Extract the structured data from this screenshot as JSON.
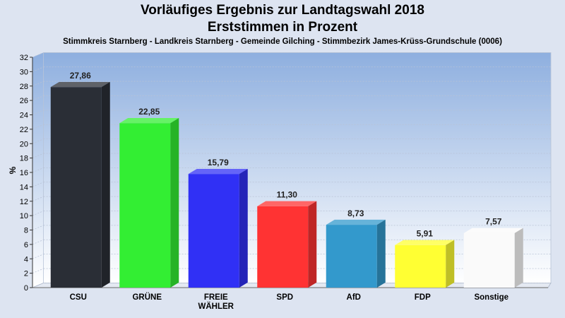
{
  "chart_data": {
    "type": "bar",
    "title": [
      "Vorläufiges Ergebnis zur Landtagswahl 2018",
      "Erststimmen in Prozent"
    ],
    "subtitle": "Stimmkreis Starnberg - Landkreis Starnberg - Gemeinde Gilching - Stimmbezirk James-Krüss-Grundschule (0006)",
    "ylabel": "%",
    "xlabel": "",
    "ylim": [
      0,
      32
    ],
    "yticks": [
      0,
      2,
      4,
      6,
      8,
      10,
      12,
      14,
      16,
      18,
      20,
      22,
      24,
      26,
      28,
      30,
      32
    ],
    "grid": true,
    "categories": [
      [
        "CSU"
      ],
      [
        "GRÜNE"
      ],
      [
        "FREIE",
        "WÄHLER"
      ],
      [
        "SPD"
      ],
      [
        "AfD"
      ],
      [
        "FDP"
      ],
      [
        "Sonstige"
      ]
    ],
    "values": [
      27.86,
      22.85,
      15.79,
      11.3,
      8.73,
      5.91,
      7.57
    ],
    "value_labels": [
      "27,86",
      "22,85",
      "15,79",
      "11,30",
      "8,73",
      "5,91",
      "7,57"
    ],
    "colors": [
      "#2a2e36",
      "#33ee33",
      "#3030f5",
      "#ff3333",
      "#3399cc",
      "#ffff33",
      "#fafafa"
    ]
  }
}
